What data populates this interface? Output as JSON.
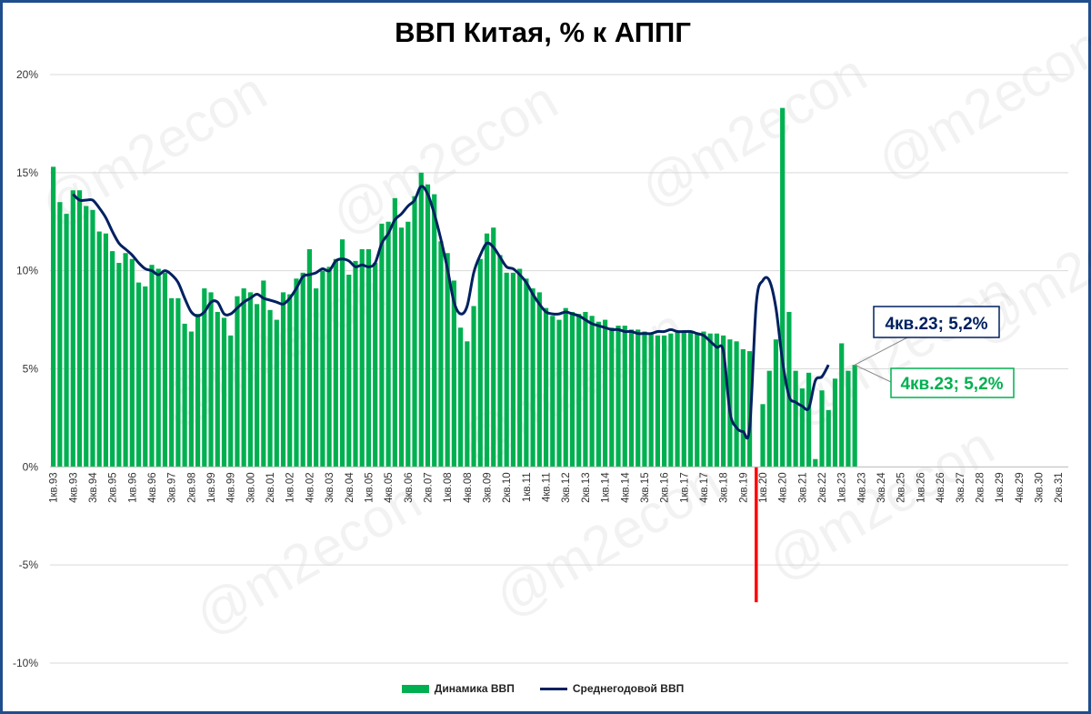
{
  "chart_data": {
    "type": "bar+line",
    "title": "ВВП Китая, % к АППГ",
    "xlabel": "",
    "ylabel": "",
    "ylim": [
      -10,
      20
    ],
    "yticks": [
      "20%",
      "15%",
      "10%",
      "5%",
      "0%",
      "-5%",
      "-10%"
    ],
    "ytick_values": [
      20,
      15,
      10,
      5,
      0,
      -5,
      -10
    ],
    "grid": true,
    "legend_position": "bottom",
    "x_start": {
      "quarter": 1,
      "year": 1993
    },
    "x_count": 155,
    "xtick_labels": [
      "1кв.93",
      "4кв.93",
      "3кв.94",
      "2кв.95",
      "1кв.96",
      "4кв.96",
      "3кв.97",
      "2кв.98",
      "1кв.99",
      "4кв.99",
      "3кв.00",
      "2кв.01",
      "1кв.02",
      "4кв.02",
      "3кв.03",
      "2кв.04",
      "1кв.05",
      "4кв.05",
      "3кв.06",
      "2кв.07",
      "1кв.08",
      "4кв.08",
      "3кв.09",
      "2кв.10",
      "1кв.11",
      "4кв.11",
      "3кв.12",
      "2кв.13",
      "1кв.14",
      "4кв.14",
      "3кв.15",
      "2кв.16",
      "1кв.17",
      "4кв.17",
      "3кв.18",
      "2кв.19",
      "1кв.20",
      "4кв.20",
      "3кв.21",
      "2кв.22",
      "1кв.23",
      "4кв.23",
      "3кв.24",
      "2кв.25",
      "1кв.26",
      "4кв.26",
      "3кв.27",
      "2кв.28",
      "1кв.29",
      "4кв.29",
      "3кв.30",
      "2кв.31"
    ],
    "colors": {
      "bars": "#00b050",
      "line": "#002060",
      "marker": "#ff0000",
      "frame": "#1f4e8c"
    },
    "series": [
      {
        "name": "Динамика ВВП",
        "type": "bar",
        "values": [
          15.3,
          13.5,
          12.9,
          14.1,
          14.1,
          13.3,
          13.1,
          12,
          11.9,
          11,
          10.4,
          10.9,
          10.6,
          9.4,
          9.2,
          10.3,
          10.1,
          9.9,
          8.6,
          8.6,
          7.3,
          6.9,
          7.8,
          9.1,
          8.9,
          7.9,
          7.6,
          6.7,
          8.7,
          9.1,
          8.9,
          8.3,
          9.5,
          8,
          7.5,
          8.9,
          8.8,
          9.6,
          9.9,
          11.1,
          9.1,
          10,
          10.2,
          10.6,
          11.6,
          9.8,
          10.5,
          11.1,
          11.1,
          10.4,
          12.4,
          12.5,
          13.7,
          12.2,
          12.5,
          13.8,
          15,
          14.4,
          13.9,
          11.5,
          10.9,
          9.5,
          7.1,
          6.4,
          8.2,
          10.6,
          11.9,
          12.2,
          10.8,
          9.9,
          9.9,
          10.1,
          9.6,
          9.1,
          8.9,
          8.1,
          7.7,
          7.5,
          8.1,
          7.9,
          7.8,
          7.9,
          7.7,
          7.4,
          7.5,
          7.1,
          7.2,
          7.2,
          7,
          7,
          6.9,
          6.8,
          6.7,
          6.7,
          6.8,
          6.9,
          6.9,
          6.9,
          6.8,
          6.9,
          6.8,
          6.8,
          6.7,
          6.5,
          6.4,
          6,
          5.9,
          0,
          3.2,
          4.9,
          6.5,
          18.3,
          7.9,
          4.9,
          4,
          4.8,
          0.4,
          3.9,
          2.9,
          4.5,
          6.3,
          4.9,
          5.2
        ],
        "missing_index": 107,
        "missing_value": -6.9
      },
      {
        "name": "Среднегодовой ВВП",
        "type": "line",
        "start_index": 3,
        "values": [
          13.9,
          13.6,
          13.6,
          13.6,
          13.2,
          12.7,
          12,
          11.4,
          11.1,
          10.8,
          10.4,
          10.1,
          10,
          9.8,
          10,
          9.8,
          9.4,
          8.6,
          7.9,
          7.7,
          7.9,
          8.4,
          8.4,
          7.8,
          7.8,
          8.1,
          8.4,
          8.6,
          8.8,
          8.6,
          8.5,
          8.4,
          8.3,
          8.6,
          9.1,
          9.7,
          9.8,
          9.9,
          10.1,
          10,
          10.5,
          10.6,
          10.5,
          10.2,
          10.3,
          10.2,
          10.4,
          11.4,
          11.9,
          12.6,
          12.9,
          13.3,
          13.6,
          14.3,
          13.9,
          12.9,
          11.6,
          10.1,
          8.4,
          7.8,
          8.2,
          9.9,
          10.8,
          11.4,
          11.2,
          10.7,
          10.2,
          10.1,
          9.8,
          9.4,
          8.8,
          8.3,
          7.9,
          7.8,
          7.8,
          7.9,
          7.8,
          7.7,
          7.5,
          7.3,
          7.2,
          7.1,
          7,
          7,
          6.9,
          6.9,
          6.8,
          6.8,
          6.8,
          6.9,
          6.9,
          7,
          6.9,
          6.9,
          6.9,
          6.8,
          6.7,
          6.4,
          6.1,
          5.9,
          2.8,
          2,
          1.8,
          2,
          8.3,
          9.5,
          9.5,
          8.1,
          5.4,
          3.6,
          3.3,
          3.1,
          3,
          4.4,
          4.6,
          5.2
        ]
      }
    ],
    "callouts": [
      {
        "text": "4кв.23; 5,2%",
        "series": "Среднегодовой ВВП",
        "color": "#002060"
      },
      {
        "text": "4кв.23; 5,2%",
        "series": "Динамика ВВП",
        "color": "#00b050"
      }
    ],
    "watermark": "@m2econ"
  }
}
